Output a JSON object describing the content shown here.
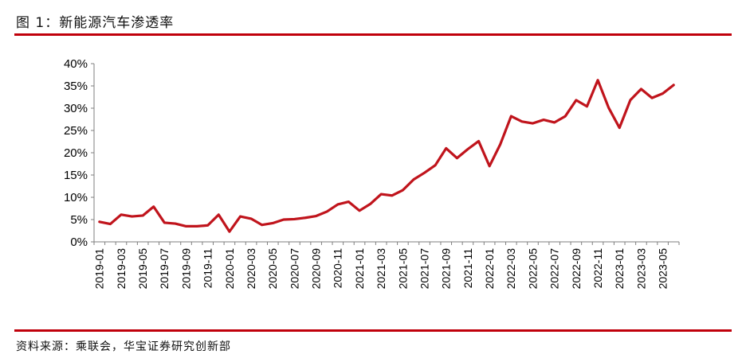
{
  "figure": {
    "title": "图 1：新能源汽车渗透率",
    "source": "资料来源：乘联会，华宝证券研究创新部"
  },
  "colors": {
    "accent": "#c0000b",
    "line": "#c0141c"
  },
  "chart_data": {
    "type": "line",
    "title": "",
    "xlabel": "",
    "ylabel": "",
    "ylim": [
      0,
      40
    ],
    "y_ticks": [
      "0%",
      "5%",
      "10%",
      "15%",
      "20%",
      "25%",
      "30%",
      "35%",
      "40%"
    ],
    "x_tick_labels": [
      "2019-01",
      "2019-03",
      "2019-05",
      "2019-07",
      "2019-09",
      "2019-11",
      "2020-01",
      "2020-03",
      "2020-05",
      "2020-07",
      "2020-09",
      "2020-11",
      "2021-01",
      "2021-03",
      "2021-05",
      "2021-07",
      "2021-09",
      "2021-11",
      "2022-01",
      "2022-03",
      "2022-05",
      "2022-07",
      "2022-09",
      "2022-11",
      "2023-01",
      "2023-03",
      "2023-05"
    ],
    "grid": false,
    "legend": "none",
    "categories": [
      "2019-01",
      "2019-02",
      "2019-03",
      "2019-04",
      "2019-05",
      "2019-06",
      "2019-07",
      "2019-08",
      "2019-09",
      "2019-10",
      "2019-11",
      "2019-12",
      "2020-01",
      "2020-02",
      "2020-03",
      "2020-04",
      "2020-05",
      "2020-06",
      "2020-07",
      "2020-08",
      "2020-09",
      "2020-10",
      "2020-11",
      "2020-12",
      "2021-01",
      "2021-02",
      "2021-03",
      "2021-04",
      "2021-05",
      "2021-06",
      "2021-07",
      "2021-08",
      "2021-09",
      "2021-10",
      "2021-11",
      "2021-12",
      "2022-01",
      "2022-02",
      "2022-03",
      "2022-04",
      "2022-05",
      "2022-06",
      "2022-07",
      "2022-08",
      "2022-09",
      "2022-10",
      "2022-11",
      "2022-12",
      "2023-01",
      "2023-02",
      "2023-03",
      "2023-04",
      "2023-05",
      "2023-06"
    ],
    "series": [
      {
        "values": [
          4.5,
          4.0,
          6.1,
          5.7,
          5.9,
          7.9,
          4.3,
          4.1,
          3.5,
          3.5,
          3.7,
          6.1,
          2.3,
          5.7,
          5.2,
          3.8,
          4.2,
          5.0,
          5.1,
          5.4,
          5.8,
          6.8,
          8.4,
          9.0,
          7.0,
          8.5,
          10.7,
          10.4,
          11.6,
          14.0,
          15.5,
          17.2,
          21.0,
          18.8,
          20.8,
          22.6,
          17.0,
          21.9,
          28.2,
          27.0,
          26.6,
          27.4,
          26.8,
          28.2,
          31.8,
          30.4,
          36.3,
          30.1,
          25.6,
          31.8,
          34.3,
          32.3,
          33.3,
          35.2
        ]
      }
    ]
  }
}
